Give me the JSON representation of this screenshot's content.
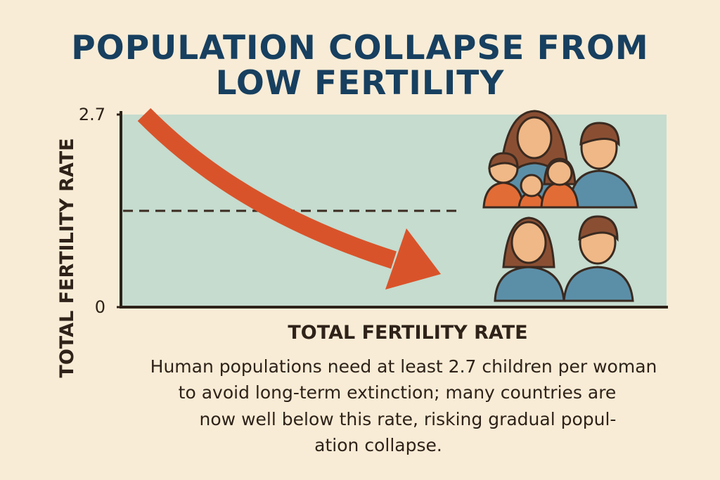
{
  "title": [
    "POPULATION COLLAPSE FROM",
    "LOW FERTILITY"
  ],
  "chart": {
    "y_label": "TOTAL FERTILITY RATE",
    "x_label": "TOTAL FERTILITY RATE",
    "ylim": [
      0,
      2.7
    ],
    "yticks": [
      2.7,
      0
    ],
    "reference_line": 1.35
  },
  "description": [
    "Human populations need at least 2.7 children per woman",
    "to avoid long-term extinction; many countries are",
    "now well below this rate, risking gradual popul-",
    "ation collapse."
  ]
}
